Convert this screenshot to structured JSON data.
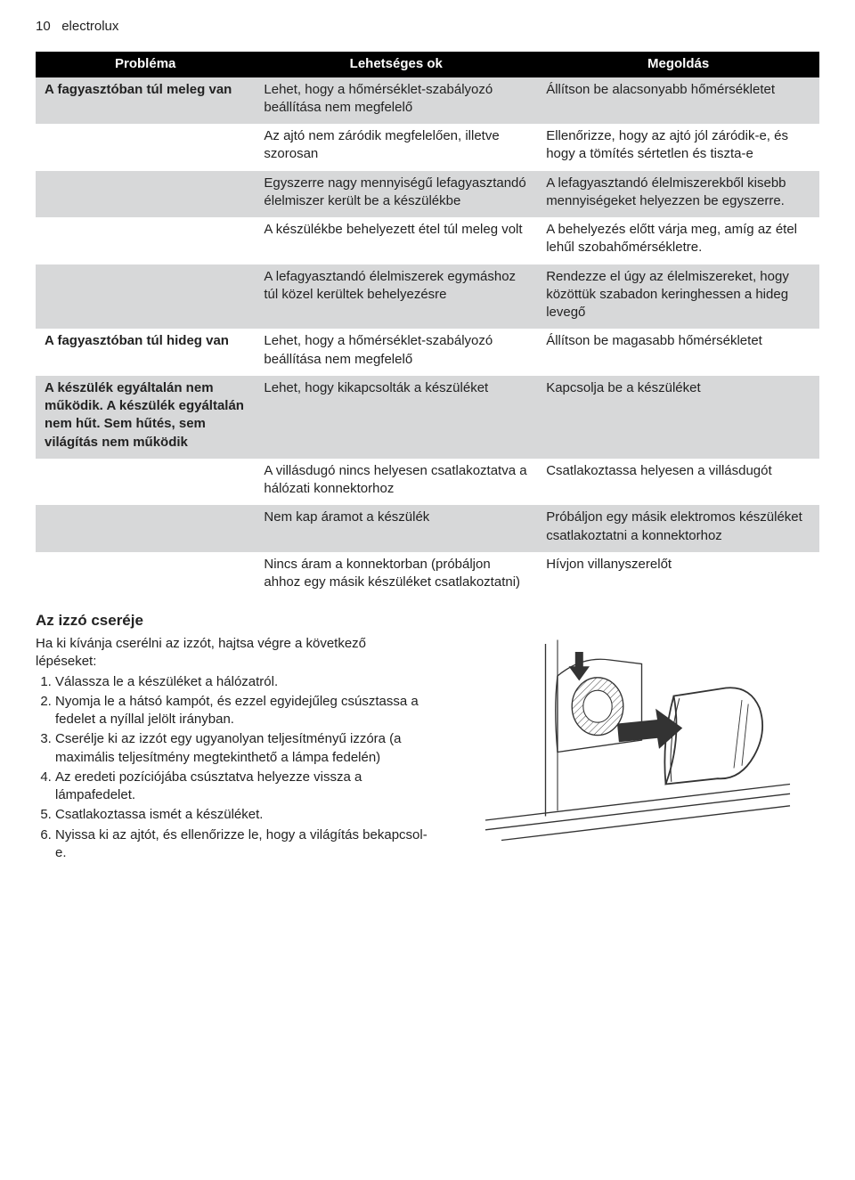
{
  "header": {
    "page_num": "10",
    "brand": "electrolux"
  },
  "table": {
    "headers": {
      "problem": "Probléma",
      "cause": "Lehetséges ok",
      "solution": "Megoldás"
    },
    "rows": [
      {
        "band": true,
        "problem": "A fagyasztóban túl meleg van",
        "cause": "Lehet, hogy a hőmérséklet-szabályozó beállítása nem megfelelő",
        "solution": "Állítson be alacsonyabb hőmérsékletet"
      },
      {
        "band": false,
        "problem": "",
        "cause": "Az ajtó nem záródik megfelelően, illetve szorosan",
        "solution": "Ellenőrizze, hogy az ajtó jól záródik-e, és hogy a tömítés sértetlen és tiszta-e"
      },
      {
        "band": true,
        "problem": "",
        "cause": "Egyszerre nagy mennyiségű lefagyasztandó élelmiszer került be a készülékbe",
        "solution": "A lefagyasztandó élelmiszerekből kisebb mennyiségeket helyezzen be egyszerre."
      },
      {
        "band": false,
        "problem": "",
        "cause": "A készülékbe behelyezett étel túl meleg volt",
        "solution": "A behelyezés előtt várja meg, amíg az étel lehűl szobahőmérsékletre."
      },
      {
        "band": true,
        "problem": "",
        "cause": "A lefagyasztandó élelmiszerek egymáshoz túl közel kerültek behelyezésre",
        "solution": "Rendezze el úgy az élelmiszereket, hogy közöttük szabadon keringhessen a hideg levegő"
      },
      {
        "band": false,
        "problem": "A fagyasztóban túl hideg van",
        "cause": "Lehet, hogy a hőmérséklet-szabályozó beállítása nem megfelelő",
        "solution": "Állítson be magasabb hőmérsékletet"
      },
      {
        "band": true,
        "problem": "A készülék egyáltalán nem működik. A készülék egyáltalán nem hűt. Sem hűtés, sem világítás nem működik",
        "cause": "Lehet, hogy kikapcsolták a készüléket",
        "solution": "Kapcsolja be a készüléket"
      },
      {
        "band": false,
        "problem": "",
        "cause": "A villásdugó nincs helyesen csatlakoztatva a hálózati konnektorhoz",
        "solution": "Csatlakoztassa helyesen a villásdugót"
      },
      {
        "band": true,
        "problem": "",
        "cause": "Nem kap áramot a készülék",
        "solution": "Próbáljon egy másik elektromos készüléket csatlakoztatni a konnektorhoz"
      },
      {
        "band": false,
        "problem": "",
        "cause": "Nincs áram a konnektorban (próbáljon ahhoz egy másik készüléket csatlakoztatni)",
        "solution": "Hívjon villanyszerelőt"
      }
    ]
  },
  "bulb": {
    "title": "Az izzó cseréje",
    "intro": "Ha ki kívánja cserélni az izzót, hajtsa végre a következő lépéseket:",
    "steps": [
      "Válassza le a készüléket a hálózatról.",
      "Nyomja le a hátsó kampót, és ezzel egyidejűleg csúsztassa a fedelet a nyíllal jelölt irányban.",
      "Cserélje ki az izzót egy ugyanolyan teljesítményű izzóra (a maximális teljesítmény megtekinthető a lámpa fedelén)",
      "Az eredeti pozíciójába csúsztatva helyezze vissza a lámpafedelet.",
      "Csatlakoztassa ismét a készüléket.",
      "Nyissa ki az ajtót, és ellenőrizze le, hogy a világítás bekapcsol-e."
    ]
  }
}
